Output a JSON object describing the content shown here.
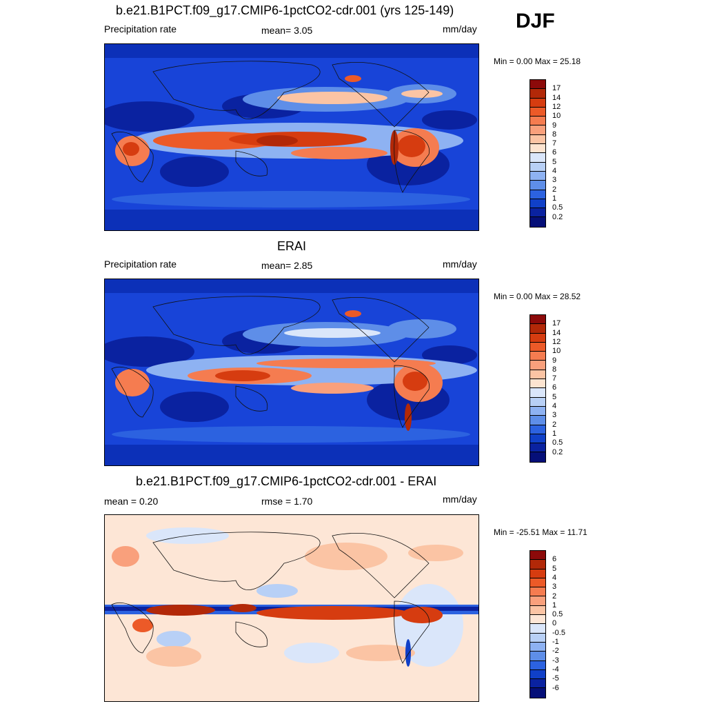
{
  "season": "DJF",
  "panels": [
    {
      "title": "b.e21.B1PCT.f09_g17.CMIP6-1pctCO2-cdr.001 (yrs 125-149)",
      "left_label": "Precipitation rate",
      "stat_label": "mean=   3.05",
      "units": "mm/day",
      "minmax": "Min =   0.00 Max =  25.18"
    },
    {
      "title": "ERAI",
      "left_label": "Precipitation rate",
      "stat_label": "mean=   2.85",
      "units": "mm/day",
      "minmax": "Min =   0.00 Max =  28.52"
    },
    {
      "title": "b.e21.B1PCT.f09_g17.CMIP6-1pctCO2-cdr.001 - ERAI",
      "left_label": "mean =   0.20",
      "stat_label": "rmse =   1.70",
      "units": "mm/day",
      "minmax": "Min = -25.51 Max =  11.71"
    }
  ],
  "chart_data": [
    {
      "type": "heatmap",
      "title": "b.e21.B1PCT.f09_g17.CMIP6-1pctCO2-cdr.001 (yrs 125-149)",
      "variable": "Precipitation rate",
      "units": "mm/day",
      "mean": 3.05,
      "min": 0.0,
      "max": 25.18,
      "colorbar_levels": [
        "17",
        "14",
        "12",
        "10",
        "9",
        "8",
        "7",
        "6",
        "5",
        "4",
        "3",
        "2",
        "1",
        "0.5",
        "0.2"
      ],
      "colors": [
        "#8c0a0a",
        "#b22808",
        "#d63c10",
        "#ec5a28",
        "#f57c50",
        "#f9a07c",
        "#fbc4a4",
        "#fde4d0",
        "#dae6fa",
        "#b8d0f6",
        "#8eb2f2",
        "#5e8ee8",
        "#2c62e0",
        "#1040c8",
        "#0a22a0",
        "#050f78"
      ]
    },
    {
      "type": "heatmap",
      "title": "ERAI",
      "variable": "Precipitation rate",
      "units": "mm/day",
      "mean": 2.85,
      "min": 0.0,
      "max": 28.52,
      "colorbar_levels": [
        "17",
        "14",
        "12",
        "10",
        "9",
        "8",
        "7",
        "6",
        "5",
        "4",
        "3",
        "2",
        "1",
        "0.5",
        "0.2"
      ],
      "colors": [
        "#8c0a0a",
        "#b22808",
        "#d63c10",
        "#ec5a28",
        "#f57c50",
        "#f9a07c",
        "#fbc4a4",
        "#fde4d0",
        "#dae6fa",
        "#b8d0f6",
        "#8eb2f2",
        "#5e8ee8",
        "#2c62e0",
        "#1040c8",
        "#0a22a0",
        "#050f78"
      ]
    },
    {
      "type": "heatmap",
      "title": "b.e21.B1PCT.f09_g17.CMIP6-1pctCO2-cdr.001 - ERAI",
      "units": "mm/day",
      "mean": 0.2,
      "rmse": 1.7,
      "min": -25.51,
      "max": 11.71,
      "colorbar_levels": [
        "6",
        "5",
        "4",
        "3",
        "2",
        "1",
        "0.5",
        "0",
        "-0.5",
        "-1",
        "-2",
        "-3",
        "-4",
        "-5",
        "-6"
      ],
      "colors": [
        "#8c0a0a",
        "#b22808",
        "#d63c10",
        "#ec5a28",
        "#f57c50",
        "#f9a07c",
        "#fbc4a4",
        "#fde6d6",
        "#dae6fa",
        "#b8d0f6",
        "#8eb2f2",
        "#5e8ee8",
        "#2c62e0",
        "#1040c8",
        "#0a22a0",
        "#050f78"
      ]
    }
  ]
}
